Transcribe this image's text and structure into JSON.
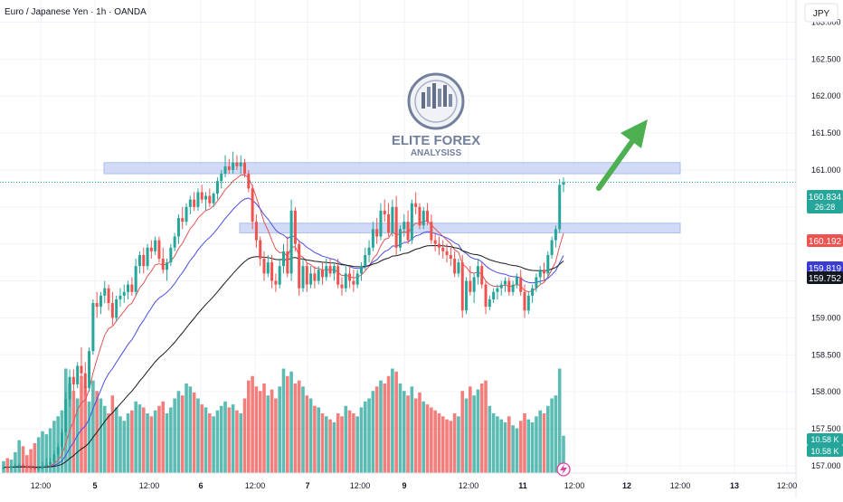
{
  "header": {
    "symbol_title": "Euro / Japanese Yen · 1h · OANDA",
    "currency_button": "JPY"
  },
  "colors": {
    "up": "#26a69a",
    "down": "#ef5350",
    "zone_fill": "#c9d4f5",
    "zone_stroke": "#9fb1ea",
    "ema_fast": "#e05555",
    "ema_mid": "#4b4ee0",
    "ema_slow": "#1a1a1a",
    "arrow": "#4caf50",
    "price_line": "#26a69a"
  },
  "logo": {
    "line1": "ELITE FOREX",
    "line2": "ANALYSISS"
  },
  "price_tags": {
    "current": {
      "value": "160.834",
      "countdown": "26:28",
      "color": "#26a69a"
    },
    "fast": {
      "value": "160.192",
      "color": "#ef5350"
    },
    "mid": {
      "value": "159.819",
      "color": "#3b3bd6"
    },
    "slow": {
      "value": "159.752",
      "color": "#131722"
    }
  },
  "volume_tags": [
    "10.58 K",
    "10.58 K"
  ],
  "chart_data": {
    "type": "candlestick",
    "yaxis": {
      "ticks": [
        "163.000",
        "162.500",
        "162.000",
        "161.500",
        "161.000",
        "160.500",
        "160.000",
        "159.500",
        "159.000",
        "158.500",
        "158.000",
        "157.500",
        "157.000"
      ],
      "ylim": [
        156.9,
        163.3
      ]
    },
    "xaxis": {
      "ticks": [
        "12:00",
        "5",
        "12:00",
        "6",
        "12:00",
        "7",
        "12:00",
        "9",
        "12:00",
        "11",
        "12:00",
        "12",
        "12:00",
        "13",
        "12:00"
      ]
    },
    "zones": [
      {
        "from": 160.95,
        "to": 161.1
      },
      {
        "from": 160.15,
        "to": 160.28
      }
    ],
    "current_price": 160.834,
    "candles": [
      [
        156.96,
        156.99,
        156.95,
        156.98,
        8
      ],
      [
        156.98,
        157.0,
        156.96,
        156.97,
        10
      ],
      [
        156.97,
        157.0,
        156.95,
        156.99,
        9
      ],
      [
        156.99,
        157.02,
        156.97,
        157.0,
        14
      ],
      [
        157.0,
        157.03,
        156.98,
        157.01,
        22
      ],
      [
        157.01,
        157.03,
        156.98,
        156.99,
        18
      ],
      [
        156.99,
        157.01,
        156.96,
        156.98,
        12
      ],
      [
        156.98,
        157.0,
        156.95,
        156.97,
        16
      ],
      [
        156.97,
        156.99,
        156.94,
        156.95,
        20
      ],
      [
        156.95,
        157.0,
        156.93,
        156.96,
        24
      ],
      [
        156.96,
        157.05,
        156.95,
        157.0,
        28
      ],
      [
        157.0,
        157.1,
        156.98,
        157.02,
        26
      ],
      [
        157.02,
        157.1,
        156.98,
        157.05,
        30
      ],
      [
        157.05,
        157.2,
        157.03,
        157.15,
        35
      ],
      [
        157.15,
        157.3,
        157.1,
        157.25,
        38
      ],
      [
        157.25,
        157.5,
        157.2,
        157.45,
        42
      ],
      [
        157.45,
        158.0,
        157.4,
        157.9,
        70
      ],
      [
        157.9,
        158.3,
        157.8,
        158.2,
        60
      ],
      [
        158.2,
        158.3,
        158.0,
        158.1,
        55
      ],
      [
        158.1,
        158.4,
        158.05,
        158.35,
        50
      ],
      [
        158.35,
        158.6,
        158.2,
        158.25,
        65
      ],
      [
        158.25,
        158.4,
        157.95,
        158.05,
        58
      ],
      [
        158.05,
        158.6,
        158.0,
        158.55,
        48
      ],
      [
        158.55,
        159.25,
        158.5,
        159.2,
        62
      ],
      [
        159.2,
        159.35,
        159.0,
        159.15,
        55
      ],
      [
        159.15,
        159.35,
        159.05,
        159.3,
        50
      ],
      [
        159.3,
        159.5,
        159.2,
        159.4,
        45
      ],
      [
        159.4,
        159.45,
        159.1,
        159.2,
        40
      ],
      [
        159.2,
        159.35,
        158.9,
        159.0,
        52
      ],
      [
        159.0,
        159.3,
        158.95,
        159.25,
        44
      ],
      [
        159.25,
        159.4,
        159.15,
        159.3,
        38
      ],
      [
        159.3,
        159.45,
        159.2,
        159.35,
        35
      ],
      [
        159.35,
        159.5,
        159.25,
        159.45,
        40
      ],
      [
        159.45,
        159.55,
        159.3,
        159.35,
        42
      ],
      [
        159.35,
        159.8,
        159.3,
        159.7,
        48
      ],
      [
        159.7,
        159.9,
        159.6,
        159.85,
        46
      ],
      [
        159.85,
        159.95,
        159.6,
        159.7,
        44
      ],
      [
        159.7,
        160.0,
        159.65,
        159.95,
        40
      ],
      [
        159.95,
        160.05,
        159.8,
        159.9,
        38
      ],
      [
        159.9,
        160.1,
        159.85,
        160.05,
        42
      ],
      [
        160.05,
        160.1,
        159.75,
        159.8,
        45
      ],
      [
        159.8,
        159.95,
        159.6,
        159.65,
        48
      ],
      [
        159.65,
        159.8,
        159.5,
        159.75,
        40
      ],
      [
        159.75,
        160.0,
        159.7,
        159.95,
        44
      ],
      [
        159.95,
        160.15,
        159.9,
        160.1,
        50
      ],
      [
        160.1,
        160.4,
        160.0,
        160.35,
        55
      ],
      [
        160.35,
        160.5,
        160.2,
        160.3,
        52
      ],
      [
        160.3,
        160.55,
        160.25,
        160.5,
        60
      ],
      [
        160.5,
        160.65,
        160.4,
        160.6,
        58
      ],
      [
        160.6,
        160.7,
        160.45,
        160.5,
        54
      ],
      [
        160.5,
        160.75,
        160.45,
        160.7,
        50
      ],
      [
        160.7,
        160.8,
        160.55,
        160.6,
        46
      ],
      [
        160.6,
        160.7,
        160.45,
        160.65,
        44
      ],
      [
        160.65,
        160.75,
        160.5,
        160.55,
        40
      ],
      [
        160.55,
        160.7,
        160.5,
        160.68,
        38
      ],
      [
        160.68,
        160.9,
        160.6,
        160.85,
        42
      ],
      [
        160.85,
        161.0,
        160.75,
        160.95,
        45
      ],
      [
        160.95,
        161.2,
        160.9,
        161.05,
        48
      ],
      [
        161.05,
        161.15,
        160.95,
        161.0,
        44
      ],
      [
        161.0,
        161.25,
        160.95,
        161.1,
        46
      ],
      [
        161.1,
        161.2,
        161.0,
        161.05,
        42
      ],
      [
        161.05,
        161.2,
        160.95,
        161.1,
        40
      ],
      [
        161.1,
        161.15,
        160.9,
        160.95,
        50
      ],
      [
        160.95,
        161.0,
        160.7,
        160.75,
        62
      ],
      [
        160.75,
        160.8,
        160.2,
        160.3,
        65
      ],
      [
        160.3,
        160.4,
        159.95,
        160.05,
        58
      ],
      [
        160.05,
        160.1,
        159.7,
        159.8,
        55
      ],
      [
        159.8,
        159.9,
        159.5,
        159.6,
        60
      ],
      [
        159.6,
        159.85,
        159.55,
        159.75,
        52
      ],
      [
        159.75,
        159.85,
        159.4,
        159.5,
        56
      ],
      [
        159.5,
        159.6,
        159.35,
        159.45,
        50
      ],
      [
        159.45,
        159.8,
        159.4,
        159.7,
        58
      ],
      [
        159.7,
        160.0,
        159.6,
        159.9,
        70
      ],
      [
        159.9,
        160.1,
        159.55,
        159.6,
        65
      ],
      [
        159.6,
        160.6,
        159.5,
        160.45,
        68
      ],
      [
        160.45,
        160.5,
        159.9,
        160.0,
        60
      ],
      [
        160.0,
        160.05,
        159.3,
        159.4,
        62
      ],
      [
        159.4,
        159.8,
        159.35,
        159.7,
        58
      ],
      [
        159.7,
        159.75,
        159.35,
        159.45,
        52
      ],
      [
        159.45,
        159.7,
        159.4,
        159.6,
        50
      ],
      [
        159.6,
        159.7,
        159.4,
        159.5,
        45
      ],
      [
        159.5,
        159.7,
        159.45,
        159.65,
        44
      ],
      [
        159.65,
        159.75,
        159.45,
        159.55,
        40
      ],
      [
        159.55,
        159.8,
        159.5,
        159.7,
        38
      ],
      [
        159.7,
        159.8,
        159.55,
        159.6,
        36
      ],
      [
        159.6,
        159.75,
        159.5,
        159.7,
        34
      ],
      [
        159.7,
        159.8,
        159.4,
        159.45,
        40
      ],
      [
        159.45,
        159.55,
        159.3,
        159.4,
        38
      ],
      [
        159.4,
        159.7,
        159.35,
        159.6,
        45
      ],
      [
        159.6,
        159.7,
        159.4,
        159.5,
        42
      ],
      [
        159.5,
        159.65,
        159.35,
        159.45,
        40
      ],
      [
        159.45,
        159.65,
        159.4,
        159.6,
        38
      ],
      [
        159.6,
        159.75,
        159.5,
        159.7,
        44
      ],
      [
        159.7,
        159.95,
        159.65,
        159.85,
        48
      ],
      [
        159.85,
        160.05,
        159.75,
        159.95,
        50
      ],
      [
        159.95,
        160.3,
        159.9,
        160.2,
        55
      ],
      [
        160.2,
        160.35,
        160.0,
        160.1,
        58
      ],
      [
        160.1,
        160.55,
        160.05,
        160.45,
        62
      ],
      [
        160.45,
        160.6,
        160.3,
        160.4,
        60
      ],
      [
        160.4,
        160.55,
        160.1,
        160.15,
        65
      ],
      [
        160.15,
        160.6,
        160.1,
        160.5,
        70
      ],
      [
        160.5,
        160.65,
        159.85,
        159.95,
        68
      ],
      [
        159.95,
        160.25,
        159.9,
        160.2,
        60
      ],
      [
        160.2,
        160.4,
        160.1,
        160.3,
        55
      ],
      [
        160.3,
        160.45,
        160.0,
        160.05,
        52
      ],
      [
        160.05,
        160.6,
        160.0,
        160.55,
        58
      ],
      [
        160.55,
        160.7,
        160.4,
        160.5,
        50
      ],
      [
        160.5,
        160.55,
        160.2,
        160.25,
        54
      ],
      [
        160.25,
        160.5,
        160.2,
        160.45,
        48
      ],
      [
        160.45,
        160.55,
        160.25,
        160.3,
        46
      ],
      [
        160.3,
        160.4,
        160.0,
        160.05,
        44
      ],
      [
        160.05,
        160.15,
        159.9,
        160.0,
        42
      ],
      [
        160.0,
        160.1,
        159.85,
        159.95,
        40
      ],
      [
        159.95,
        160.05,
        159.8,
        159.9,
        38
      ],
      [
        159.9,
        160.0,
        159.75,
        159.85,
        36
      ],
      [
        159.85,
        159.95,
        159.7,
        159.8,
        35
      ],
      [
        159.8,
        159.9,
        159.55,
        159.6,
        40
      ],
      [
        159.6,
        159.8,
        159.55,
        159.75,
        38
      ],
      [
        159.75,
        159.85,
        159.0,
        159.1,
        55
      ],
      [
        159.1,
        159.55,
        159.05,
        159.5,
        50
      ],
      [
        159.5,
        159.7,
        159.3,
        159.35,
        58
      ],
      [
        159.35,
        159.6,
        159.2,
        159.55,
        52
      ],
      [
        159.55,
        159.8,
        159.45,
        159.7,
        56
      ],
      [
        159.7,
        159.75,
        159.4,
        159.45,
        60
      ],
      [
        159.45,
        159.5,
        159.05,
        159.15,
        62
      ],
      [
        159.15,
        159.3,
        159.1,
        159.25,
        45
      ],
      [
        159.25,
        159.4,
        159.2,
        159.35,
        40
      ],
      [
        159.35,
        159.45,
        159.25,
        159.4,
        38
      ],
      [
        159.4,
        159.5,
        159.3,
        159.45,
        36
      ],
      [
        159.45,
        159.55,
        159.35,
        159.5,
        34
      ],
      [
        159.5,
        159.55,
        159.3,
        159.35,
        38
      ],
      [
        159.35,
        159.5,
        159.3,
        159.45,
        32
      ],
      [
        159.45,
        159.6,
        159.4,
        159.55,
        30
      ],
      [
        159.55,
        159.65,
        159.3,
        159.35,
        35
      ],
      [
        159.35,
        159.45,
        159.0,
        159.1,
        40
      ],
      [
        159.1,
        159.35,
        159.05,
        159.3,
        36
      ],
      [
        159.3,
        159.45,
        159.2,
        159.4,
        34
      ],
      [
        159.4,
        159.6,
        159.35,
        159.55,
        38
      ],
      [
        159.55,
        159.7,
        159.45,
        159.65,
        42
      ],
      [
        159.65,
        159.75,
        159.5,
        159.6,
        40
      ],
      [
        159.6,
        159.9,
        159.55,
        159.85,
        45
      ],
      [
        159.85,
        160.1,
        159.8,
        160.05,
        50
      ],
      [
        160.05,
        160.25,
        159.95,
        160.2,
        52
      ],
      [
        160.2,
        160.88,
        160.15,
        160.8,
        70
      ],
      [
        160.8,
        160.9,
        160.7,
        160.834,
        25
      ]
    ]
  }
}
